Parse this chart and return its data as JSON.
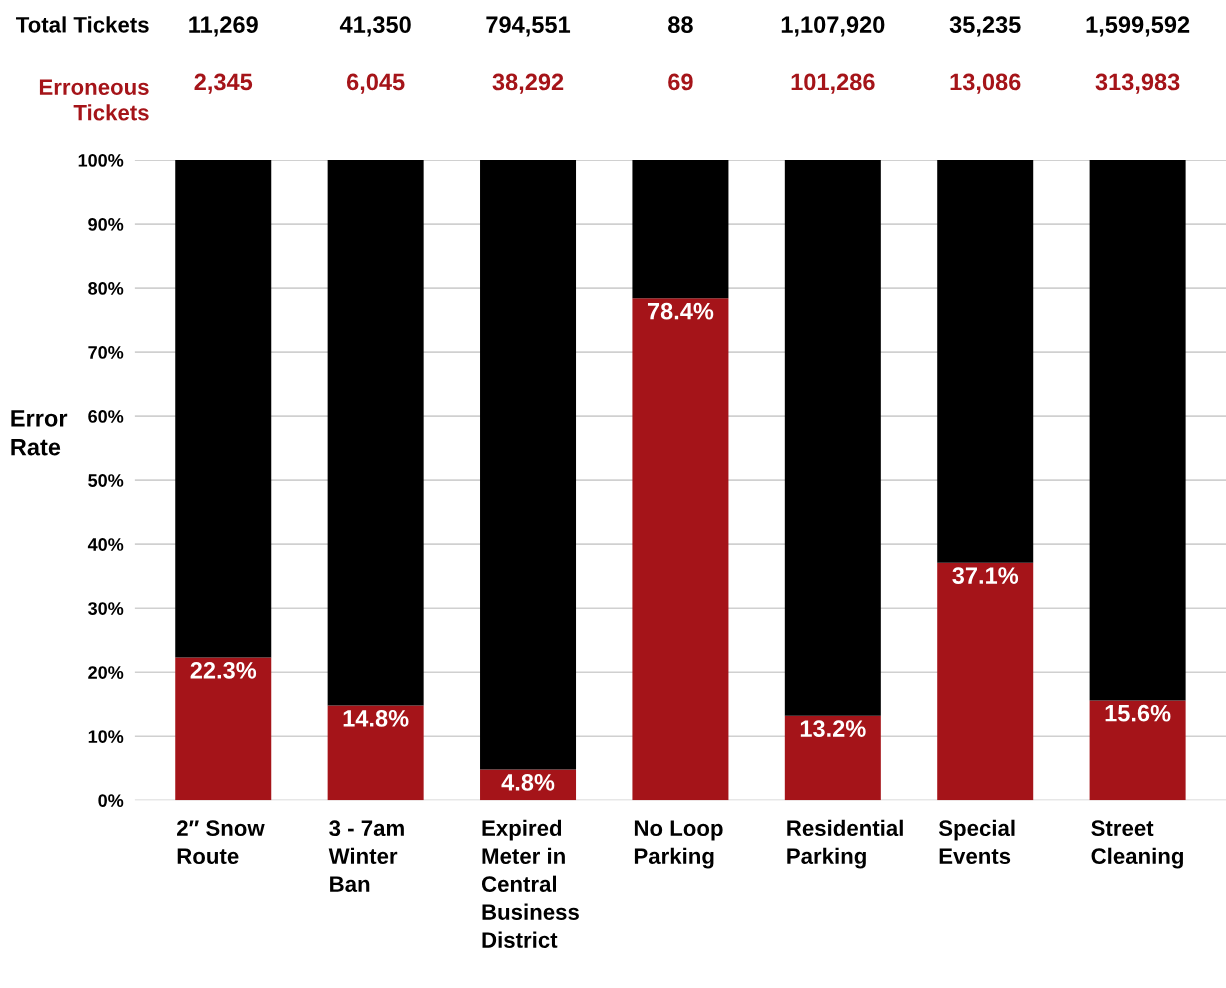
{
  "chart_data": {
    "type": "bar",
    "stacked": true,
    "ylabel": "Error Rate",
    "categories": [
      "2″ Snow\nRoute",
      "3 - 7am\nWinter\nBan",
      "Expired\nMeter in\nCentral\nBusiness\nDistrict",
      "No Loop\nParking",
      "Residential\nParking",
      "Special\nEvents",
      "Street\nCleaning"
    ],
    "series": [
      {
        "color": "#a51419",
        "values": [
          22.3,
          14.8,
          4.8,
          78.4,
          13.2,
          37.1,
          15.6
        ],
        "value_labels": [
          "22.3%",
          "14.8%",
          "4.8%",
          "78.4%",
          "13.2%",
          "37.1%",
          "15.6%"
        ]
      },
      {
        "color": "#000000",
        "values": [
          77.7,
          85.2,
          95.2,
          21.6,
          86.8,
          62.9,
          84.4
        ]
      }
    ],
    "ylim": [
      0,
      100
    ],
    "yticks": [
      {
        "value": 0,
        "label": "0%"
      },
      {
        "value": 10,
        "label": "10%"
      },
      {
        "value": 20,
        "label": "20%"
      },
      {
        "value": 30,
        "label": "30%"
      },
      {
        "value": 40,
        "label": "40%"
      },
      {
        "value": 50,
        "label": "50%"
      },
      {
        "value": 60,
        "label": "60%"
      },
      {
        "value": 70,
        "label": "70%"
      },
      {
        "value": 80,
        "label": "80%"
      },
      {
        "value": 90,
        "label": "90%"
      },
      {
        "value": 100,
        "label": "100%"
      }
    ],
    "grid": "y",
    "annotations": [
      "Total Tickets",
      "11,269",
      "41,350",
      "794,551",
      "88",
      "1,107,920",
      "35,235",
      "1,599,592",
      "Erroneous\nTickets",
      "2,345",
      "6,045",
      "38,292",
      "69",
      "101,286",
      "13,086",
      "313,983"
    ]
  }
}
